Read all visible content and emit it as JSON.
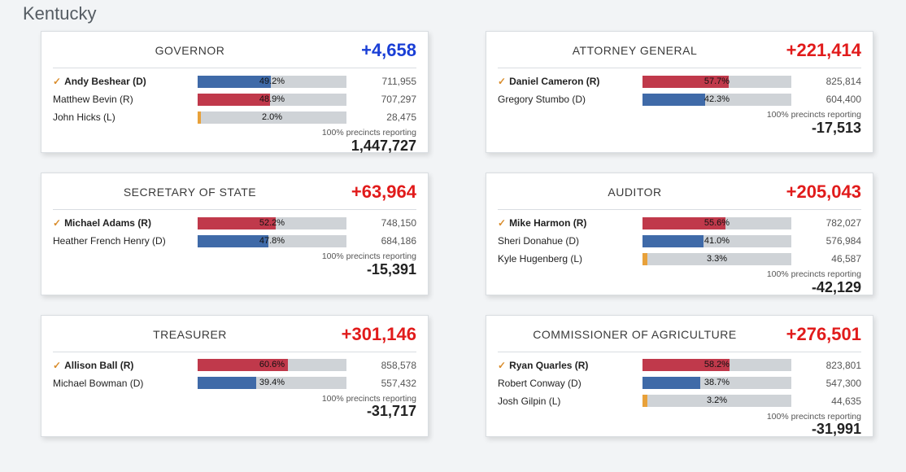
{
  "page": {
    "title": "Kentucky"
  },
  "colors": {
    "dem": "#3f6aa8",
    "rep": "#c0394b",
    "lib": "#e8a13a",
    "track": "#cfd3d7",
    "margin_red": "#e11b1b",
    "margin_blue": "#1a3fd6"
  },
  "reporting_label": "100% precincts reporting",
  "races": [
    {
      "title": "GOVERNOR",
      "margin": "+4,658",
      "margin_color": "#1a3fd6",
      "bottom_number": "1,447,727",
      "candidates": [
        {
          "name": "Andy Beshear (D)",
          "winner": true,
          "pct": 49.2,
          "pct_label": "49.2%",
          "votes": "711,955",
          "color": "#3f6aa8"
        },
        {
          "name": "Matthew Bevin (R)",
          "winner": false,
          "pct": 48.9,
          "pct_label": "48.9%",
          "votes": "707,297",
          "color": "#c0394b"
        },
        {
          "name": "John Hicks (L)",
          "winner": false,
          "pct": 2.0,
          "pct_label": "2.0%",
          "votes": "28,475",
          "color": "#e8a13a"
        }
      ]
    },
    {
      "title": "ATTORNEY GENERAL",
      "margin": "+221,414",
      "margin_color": "#e11b1b",
      "bottom_number": "-17,513",
      "candidates": [
        {
          "name": "Daniel Cameron (R)",
          "winner": true,
          "pct": 57.7,
          "pct_label": "57.7%",
          "votes": "825,814",
          "color": "#c0394b"
        },
        {
          "name": "Gregory Stumbo (D)",
          "winner": false,
          "pct": 42.3,
          "pct_label": "42.3%",
          "votes": "604,400",
          "color": "#3f6aa8"
        }
      ]
    },
    {
      "title": "SECRETARY OF STATE",
      "margin": "+63,964",
      "margin_color": "#e11b1b",
      "bottom_number": "-15,391",
      "candidates": [
        {
          "name": "Michael Adams (R)",
          "winner": true,
          "pct": 52.2,
          "pct_label": "52.2%",
          "votes": "748,150",
          "color": "#c0394b"
        },
        {
          "name": "Heather French Henry (D)",
          "winner": false,
          "pct": 47.8,
          "pct_label": "47.8%",
          "votes": "684,186",
          "color": "#3f6aa8"
        }
      ]
    },
    {
      "title": "AUDITOR",
      "margin": "+205,043",
      "margin_color": "#e11b1b",
      "bottom_number": "-42,129",
      "candidates": [
        {
          "name": "Mike Harmon (R)",
          "winner": true,
          "pct": 55.6,
          "pct_label": "55.6%",
          "votes": "782,027",
          "color": "#c0394b"
        },
        {
          "name": "Sheri Donahue (D)",
          "winner": false,
          "pct": 41.0,
          "pct_label": "41.0%",
          "votes": "576,984",
          "color": "#3f6aa8"
        },
        {
          "name": "Kyle Hugenberg (L)",
          "winner": false,
          "pct": 3.3,
          "pct_label": "3.3%",
          "votes": "46,587",
          "color": "#e8a13a"
        }
      ]
    },
    {
      "title": "TREASURER",
      "margin": "+301,146",
      "margin_color": "#e11b1b",
      "bottom_number": "-31,717",
      "candidates": [
        {
          "name": "Allison Ball (R)",
          "winner": true,
          "pct": 60.6,
          "pct_label": "60.6%",
          "votes": "858,578",
          "color": "#c0394b"
        },
        {
          "name": "Michael Bowman (D)",
          "winner": false,
          "pct": 39.4,
          "pct_label": "39.4%",
          "votes": "557,432",
          "color": "#3f6aa8"
        }
      ]
    },
    {
      "title": "COMMISSIONER OF AGRICULTURE",
      "margin": "+276,501",
      "margin_color": "#e11b1b",
      "bottom_number": "-31,991",
      "candidates": [
        {
          "name": "Ryan Quarles (R)",
          "winner": true,
          "pct": 58.2,
          "pct_label": "58.2%",
          "votes": "823,801",
          "color": "#c0394b"
        },
        {
          "name": "Robert Conway (D)",
          "winner": false,
          "pct": 38.7,
          "pct_label": "38.7%",
          "votes": "547,300",
          "color": "#3f6aa8"
        },
        {
          "name": "Josh Gilpin (L)",
          "winner": false,
          "pct": 3.2,
          "pct_label": "3.2%",
          "votes": "44,635",
          "color": "#e8a13a"
        }
      ]
    }
  ]
}
